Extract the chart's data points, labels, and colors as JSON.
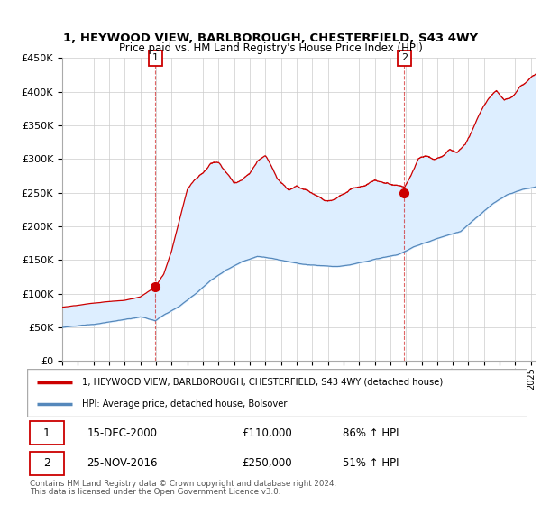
{
  "title": "1, HEYWOOD VIEW, BARLBOROUGH, CHESTERFIELD, S43 4WY",
  "subtitle": "Price paid vs. HM Land Registry's House Price Index (HPI)",
  "legend_line1": "1, HEYWOOD VIEW, BARLBOROUGH, CHESTERFIELD, S43 4WY (detached house)",
  "legend_line2": "HPI: Average price, detached house, Bolsover",
  "footer1": "Contains HM Land Registry data © Crown copyright and database right 2024.",
  "footer2": "This data is licensed under the Open Government Licence v3.0.",
  "table_rows": [
    {
      "num": "1",
      "date": "15-DEC-2000",
      "price": "£110,000",
      "hpi": "86% ↑ HPI"
    },
    {
      "num": "2",
      "date": "25-NOV-2016",
      "price": "£250,000",
      "hpi": "51% ↑ HPI"
    }
  ],
  "sale1_x": 2000.96,
  "sale1_y": 110000,
  "sale2_x": 2016.9,
  "sale2_y": 250000,
  "ylim": [
    0,
    450000
  ],
  "xlim_start": 1995.0,
  "xlim_end": 2025.3,
  "red_color": "#cc0000",
  "blue_color": "#5588bb",
  "fill_color": "#ddeeff",
  "vline_color": "#cc0000",
  "background_color": "#ffffff",
  "grid_color": "#cccccc"
}
